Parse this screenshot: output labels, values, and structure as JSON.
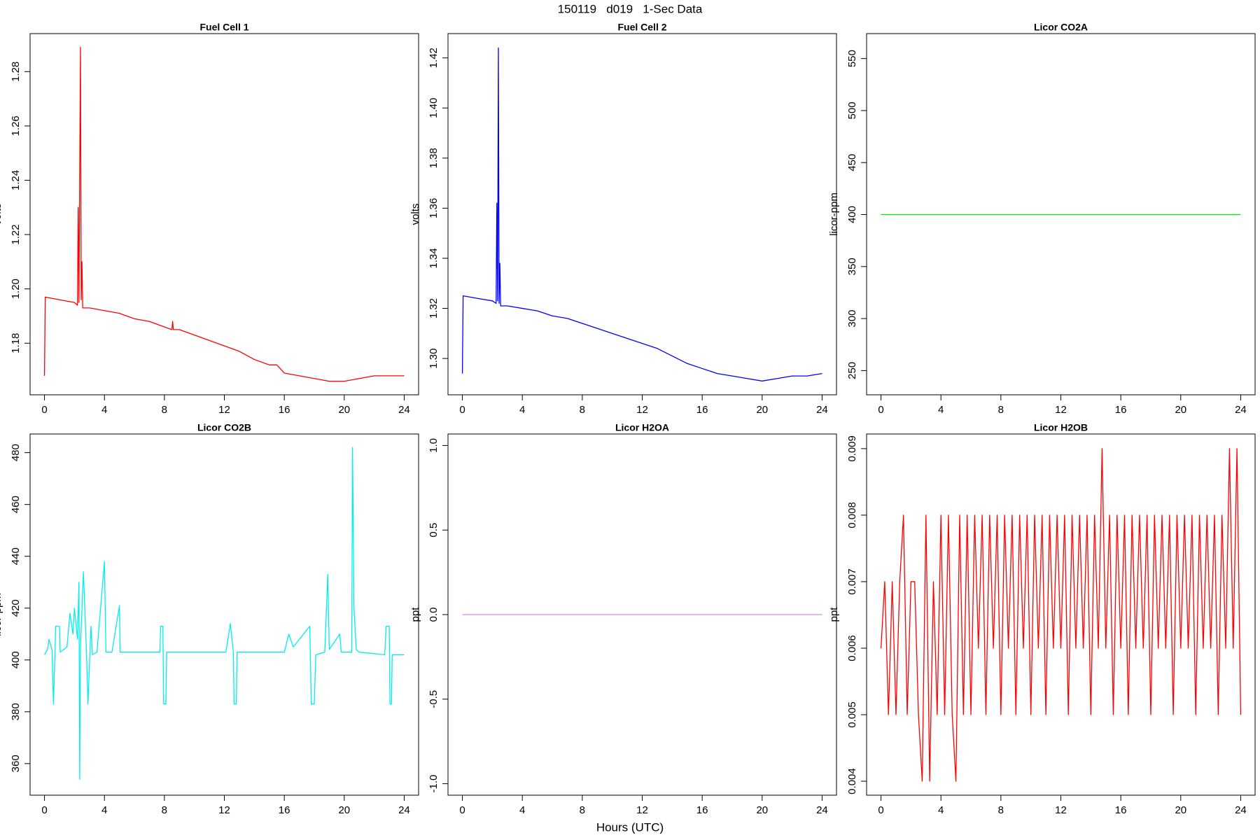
{
  "title": "150119   d019   1-Sec Data",
  "xlabel": "Hours (UTC)",
  "chart_data": [
    {
      "type": "line",
      "title": "Fuel Cell 1",
      "ylabel": "volts",
      "color": "#ff0000",
      "x": [
        0,
        0.05,
        1,
        2,
        2.2,
        2.25,
        2.3,
        2.4,
        2.45,
        2.5,
        2.55,
        3,
        4,
        5,
        6,
        7,
        8,
        8.5,
        8.55,
        8.6,
        9,
        10,
        11,
        12,
        13,
        14,
        15,
        15.5,
        16,
        17,
        18,
        19,
        20,
        21,
        22,
        23,
        24
      ],
      "values": [
        1.168,
        1.197,
        1.196,
        1.195,
        1.194,
        1.23,
        1.195,
        1.289,
        1.196,
        1.21,
        1.193,
        1.193,
        1.192,
        1.191,
        1.189,
        1.188,
        1.186,
        1.185,
        1.188,
        1.185,
        1.185,
        1.183,
        1.181,
        1.179,
        1.177,
        1.174,
        1.172,
        1.172,
        1.169,
        1.168,
        1.167,
        1.166,
        1.166,
        1.167,
        1.168,
        1.168,
        1.168
      ],
      "xlim": [
        -0.96,
        24.96
      ],
      "xticks": [
        0,
        4,
        8,
        12,
        16,
        20,
        24
      ],
      "ylim": [
        1.161,
        1.294
      ],
      "yticks": [
        1.18,
        {
          "value": 1.2,
          "label": "1.20"
        },
        1.22,
        1.24,
        1.26,
        1.28
      ]
    },
    {
      "type": "line",
      "title": "Fuel Cell 2",
      "ylabel": "volts",
      "color": "#0000ff",
      "x": [
        0,
        0.05,
        1,
        2,
        2.25,
        2.3,
        2.35,
        2.4,
        2.45,
        2.5,
        2.55,
        3,
        4,
        5,
        6,
        7,
        8,
        9,
        10,
        11,
        12,
        13,
        14,
        15,
        16,
        17,
        18,
        19,
        20,
        21,
        22,
        23,
        24
      ],
      "values": [
        1.294,
        1.325,
        1.324,
        1.323,
        1.322,
        1.362,
        1.323,
        1.424,
        1.322,
        1.338,
        1.321,
        1.321,
        1.32,
        1.319,
        1.317,
        1.316,
        1.314,
        1.312,
        1.31,
        1.308,
        1.306,
        1.304,
        1.301,
        1.298,
        1.296,
        1.294,
        1.293,
        1.292,
        1.291,
        1.292,
        1.293,
        1.293,
        1.294
      ],
      "xlim": [
        -0.96,
        24.96
      ],
      "xticks": [
        0,
        4,
        8,
        12,
        16,
        20,
        24
      ],
      "ylim": [
        1.2855,
        1.4297
      ],
      "yticks": [
        {
          "value": 1.3,
          "label": "1.30"
        },
        1.32,
        1.34,
        1.36,
        1.38,
        {
          "value": 1.4,
          "label": "1.40"
        },
        1.42
      ]
    },
    {
      "type": "line",
      "title": "Licor CO2A",
      "ylabel": "licor-ppm",
      "color": "#00ee00",
      "x": [
        0,
        24
      ],
      "values": [
        400,
        400
      ],
      "xlim": [
        -0.96,
        24.96
      ],
      "xticks": [
        0,
        4,
        8,
        12,
        16,
        20,
        24
      ],
      "ylim": [
        226.7,
        574
      ],
      "yticks": [
        250,
        300,
        350,
        400,
        450,
        500,
        550
      ]
    },
    {
      "type": "line",
      "title": "Licor CO2B",
      "ylabel": "licor-ppm",
      "color": "#00eeee",
      "x": [
        0,
        0.2,
        0.3,
        0.5,
        0.6,
        0.75,
        1.0,
        1.05,
        1.5,
        1.7,
        1.9,
        2.0,
        2.2,
        2.3,
        2.35,
        2.4,
        2.6,
        2.8,
        2.9,
        3.1,
        3.2,
        3.5,
        4.0,
        4.1,
        4.5,
        5.0,
        5.05,
        7.7,
        7.75,
        7.9,
        7.95,
        8.1,
        8.15,
        12.1,
        12.4,
        12.6,
        12.65,
        12.8,
        12.85,
        16.0,
        16.3,
        16.6,
        17.7,
        17.8,
        18.0,
        18.1,
        18.7,
        18.9,
        19.0,
        19.7,
        19.8,
        20.5,
        20.55,
        20.65,
        20.8,
        21.0,
        22.7,
        22.8,
        23.0,
        23.05,
        23.15,
        23.2,
        24
      ],
      "values": [
        402,
        404,
        408,
        404,
        383,
        413,
        413,
        403,
        405,
        418,
        410,
        420,
        408,
        430,
        354,
        405,
        434,
        403,
        383,
        413,
        402,
        403,
        438,
        403,
        403,
        421,
        403,
        403,
        413,
        413,
        383,
        383,
        403,
        403,
        414,
        403,
        383,
        383,
        403,
        403,
        410,
        405,
        413,
        383,
        383,
        402,
        403,
        433,
        404,
        410,
        403,
        403,
        482,
        420,
        404,
        403,
        402,
        413,
        413,
        383,
        383,
        402,
        402
      ],
      "xlim": [
        -0.96,
        24.96
      ],
      "xticks": [
        0,
        4,
        8,
        12,
        16,
        20,
        24
      ],
      "ylim": [
        347.8,
        487.2
      ],
      "yticks": [
        360,
        380,
        400,
        420,
        440,
        460,
        480
      ]
    },
    {
      "type": "line",
      "title": "Licor H2OA",
      "ylabel": "ppt",
      "color": "#dd88ee",
      "x": [
        0,
        24
      ],
      "values": [
        0,
        0
      ],
      "xlim": [
        -0.96,
        24.96
      ],
      "xticks": [
        0,
        4,
        8,
        12,
        16,
        20,
        24
      ],
      "ylim": [
        -1.068,
        1.068
      ],
      "yticks": [
        {
          "value": -1,
          "label": "-1.0"
        },
        -0.5,
        {
          "value": 0,
          "label": "0.0"
        },
        0.5,
        {
          "value": 1,
          "label": "1.0"
        }
      ]
    },
    {
      "type": "line",
      "title": "Licor H2OB",
      "ylabel": "ppt",
      "color": "#ff0000",
      "x": [
        0,
        0.25,
        0.5,
        0.75,
        1,
        1.25,
        1.5,
        1.75,
        2,
        2.25,
        2.5,
        2.75,
        3,
        3.25,
        3.5,
        3.75,
        4,
        4.25,
        4.5,
        4.75,
        5,
        5.25,
        5.5,
        5.75,
        6,
        6.25,
        6.5,
        6.75,
        7,
        7.25,
        7.5,
        7.75,
        8,
        8.25,
        8.5,
        8.75,
        9,
        9.25,
        9.5,
        9.75,
        10,
        10.25,
        10.5,
        10.75,
        11,
        11.25,
        11.5,
        11.75,
        12,
        12.25,
        12.5,
        12.75,
        13,
        13.25,
        13.5,
        13.75,
        14,
        14.25,
        14.5,
        14.75,
        15,
        15.25,
        15.5,
        15.75,
        16,
        16.25,
        16.5,
        16.75,
        17,
        17.25,
        17.5,
        17.75,
        18,
        18.25,
        18.5,
        18.75,
        19,
        19.25,
        19.5,
        19.75,
        20,
        20.25,
        20.5,
        20.75,
        21,
        21.25,
        21.5,
        21.75,
        22,
        22.25,
        22.5,
        22.75,
        23,
        23.25,
        23.5,
        23.75,
        24
      ],
      "values": [
        0.006,
        0.007,
        0.005,
        0.007,
        0.005,
        0.007,
        0.008,
        0.005,
        0.007,
        0.007,
        0.005,
        0.004,
        0.008,
        0.004,
        0.007,
        0.005,
        0.008,
        0.005,
        0.008,
        0.005,
        0.004,
        0.008,
        0.005,
        0.008,
        0.005,
        0.008,
        0.006,
        0.008,
        0.005,
        0.008,
        0.006,
        0.008,
        0.005,
        0.008,
        0.006,
        0.008,
        0.005,
        0.008,
        0.006,
        0.008,
        0.005,
        0.008,
        0.006,
        0.008,
        0.005,
        0.008,
        0.006,
        0.008,
        0.006,
        0.008,
        0.005,
        0.008,
        0.006,
        0.008,
        0.006,
        0.008,
        0.005,
        0.008,
        0.006,
        0.009,
        0.006,
        0.008,
        0.005,
        0.008,
        0.006,
        0.008,
        0.005,
        0.008,
        0.006,
        0.008,
        0.006,
        0.008,
        0.005,
        0.008,
        0.006,
        0.008,
        0.006,
        0.008,
        0.005,
        0.008,
        0.006,
        0.008,
        0.006,
        0.008,
        0.005,
        0.008,
        0.006,
        0.008,
        0.006,
        0.008,
        0.005,
        0.008,
        0.006,
        0.009,
        0.006,
        0.009,
        0.005
      ],
      "xlim": [
        -0.96,
        24.96
      ],
      "xticks": [
        0,
        4,
        8,
        12,
        16,
        20,
        24
      ],
      "ylim": [
        0.00379,
        0.00922
      ],
      "yticks": [
        0.004,
        0.005,
        0.006,
        0.007,
        0.008,
        0.009
      ]
    }
  ]
}
